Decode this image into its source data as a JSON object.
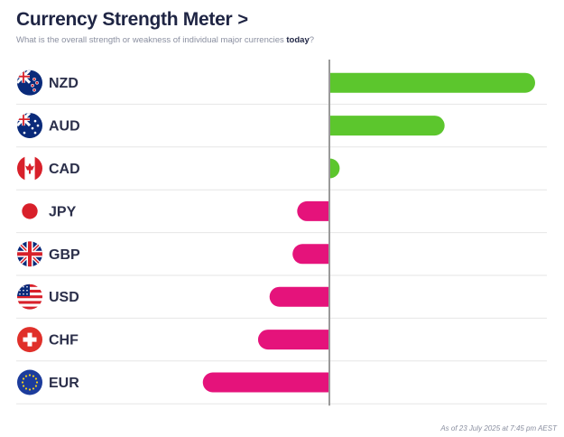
{
  "header": {
    "title": "Currency Strength Meter",
    "chevron": ">",
    "subtitle_prefix": "What is the overall strength or weakness of individual major currencies ",
    "subtitle_bold": "today",
    "subtitle_suffix": "?"
  },
  "footer": {
    "timestamp": "As of 23 July 2025 at 7:45 pm AEST"
  },
  "colors": {
    "positive": "#5cc62d",
    "negative": "#e5137b",
    "axis": "#9a9a9a",
    "row_divider": "#e6e6e6",
    "label": "#2b2f4a"
  },
  "chart_data": {
    "type": "bar",
    "orientation": "horizontal",
    "categories": [
      "NZD",
      "AUD",
      "CAD",
      "JPY",
      "GBP",
      "USD",
      "CHF",
      "EUR"
    ],
    "values": [
      100,
      56,
      5,
      -14,
      -16,
      -26,
      -31,
      -55
    ],
    "flags": [
      "nz-flag-icon",
      "au-flag-icon",
      "ca-flag-icon",
      "jp-flag-icon",
      "gb-flag-icon",
      "us-flag-icon",
      "ch-flag-icon",
      "eu-flag-icon"
    ],
    "xlim": [
      -100,
      100
    ],
    "title": "",
    "xlabel": "",
    "ylabel": "",
    "grid": false,
    "legend": "none"
  }
}
